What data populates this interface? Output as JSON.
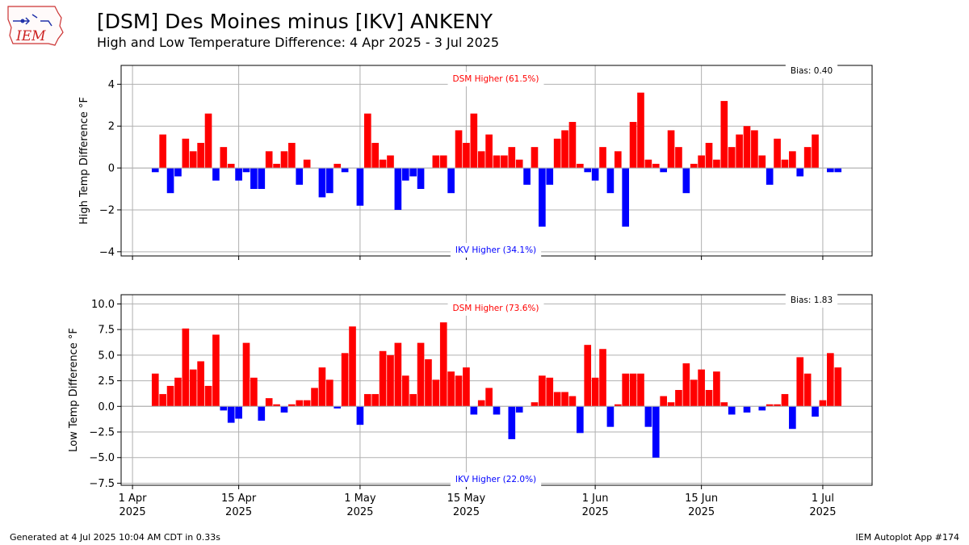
{
  "header": {
    "title": "[DSM] Des Moines minus [IKV] ANKENY",
    "subtitle": "High and Low Temperature Difference: 4 Apr 2025 - 3 Jul 2025"
  },
  "logo": {
    "text": "IEM"
  },
  "footer": {
    "generated": "Generated at 4 Jul 2025 10:04 AM CDT in 0.33s",
    "app": "IEM Autoplot App #174"
  },
  "colors": {
    "positive": "#ff0000",
    "negative": "#0000ff",
    "grid": "#b0b0b0"
  },
  "chart_data": [
    {
      "type": "bar",
      "ylabel": "High Temp Difference °F",
      "ylim": [
        -4.2,
        4.9
      ],
      "yticks": [
        -4,
        -2,
        0,
        2,
        4
      ],
      "ytick_labels": [
        "−4",
        "−2",
        "0",
        "2",
        "4"
      ],
      "xlim": [
        -1.5,
        97.5
      ],
      "xticks": [
        0,
        14,
        30,
        44,
        61,
        75,
        91
      ],
      "start_date": "2025-04-04",
      "start_offset": 3,
      "bias_label": "Bias: 0.40",
      "higher_label": "DSM Higher (61.5%)",
      "lower_label": "IKV Higher (34.1%)",
      "values": [
        -0.2,
        1.6,
        -1.2,
        -0.4,
        1.4,
        0.8,
        1.2,
        2.6,
        -0.6,
        1.0,
        0.2,
        -0.6,
        -0.2,
        -1.0,
        -1.0,
        0.8,
        0.2,
        0.8,
        1.2,
        -0.8,
        0.4,
        0.0,
        -1.4,
        -1.2,
        0.2,
        -0.2,
        0.0,
        -1.8,
        2.6,
        1.2,
        0.4,
        0.6,
        -2.0,
        -0.6,
        -0.4,
        -1.0,
        0.0,
        0.6,
        0.6,
        -1.2,
        1.8,
        1.2,
        2.6,
        0.8,
        1.6,
        0.6,
        0.6,
        1.0,
        0.4,
        -0.8,
        1.0,
        -2.8,
        -0.8,
        1.4,
        1.8,
        2.2,
        0.2,
        -0.2,
        -0.6,
        1.0,
        -1.2,
        0.8,
        -2.8,
        2.2,
        3.6,
        0.4,
        0.2,
        -0.2,
        1.8,
        1.0,
        -1.2,
        0.2,
        0.6,
        1.2,
        0.4,
        3.2,
        1.0,
        1.6,
        2.0,
        1.8,
        0.6,
        -0.8,
        1.4,
        0.4,
        0.8,
        -0.4,
        1.0,
        1.6,
        0.0,
        -0.2,
        -0.2
      ]
    },
    {
      "type": "bar",
      "ylabel": "Low Temp Difference °F",
      "ylim": [
        -7.7,
        10.9
      ],
      "yticks": [
        -7.5,
        -5.0,
        -2.5,
        0.0,
        2.5,
        5.0,
        7.5,
        10.0
      ],
      "ytick_labels": [
        "−7.5",
        "−5.0",
        "−2.5",
        "0.0",
        "2.5",
        "5.0",
        "7.5",
        "10.0"
      ],
      "xlim": [
        -1.5,
        97.5
      ],
      "xticks": [
        0,
        14,
        30,
        44,
        61,
        75,
        91
      ],
      "xtick_labels": [
        [
          "1 Apr",
          "2025"
        ],
        [
          "15 Apr",
          "2025"
        ],
        [
          "1 May",
          "2025"
        ],
        [
          "15 May",
          "2025"
        ],
        [
          "1 Jun",
          "2025"
        ],
        [
          "15 Jun",
          "2025"
        ],
        [
          "1 Jul",
          "2025"
        ]
      ],
      "start_date": "2025-04-04",
      "start_offset": 3,
      "bias_label": "Bias: 1.83",
      "higher_label": "DSM Higher (73.6%)",
      "lower_label": "IKV Higher (22.0%)",
      "values": [
        3.2,
        1.2,
        2.0,
        2.8,
        7.6,
        3.6,
        4.4,
        2.0,
        7.0,
        -0.4,
        -1.6,
        -1.2,
        6.2,
        2.8,
        -1.4,
        0.8,
        0.2,
        -0.6,
        0.2,
        0.6,
        0.6,
        1.8,
        3.8,
        2.6,
        -0.2,
        5.2,
        7.8,
        -1.8,
        1.2,
        1.2,
        5.4,
        5.0,
        6.2,
        3.0,
        1.2,
        6.2,
        4.6,
        2.6,
        8.2,
        3.4,
        3.0,
        3.8,
        -0.8,
        0.6,
        1.8,
        -0.8,
        0.0,
        -3.2,
        -0.6,
        0.0,
        0.4,
        3.0,
        2.8,
        1.4,
        1.4,
        1.0,
        -2.6,
        6.0,
        2.8,
        5.6,
        -2.0,
        0.2,
        3.2,
        3.2,
        3.2,
        -2.0,
        -5.0,
        1.0,
        0.4,
        1.6,
        4.2,
        2.6,
        3.6,
        1.6,
        3.4,
        0.4,
        -0.8,
        0.0,
        -0.6,
        0.0,
        -0.4,
        0.2,
        0.2,
        1.2,
        -2.2,
        4.8,
        3.2,
        -1.0,
        0.6,
        5.2,
        3.8
      ]
    }
  ]
}
